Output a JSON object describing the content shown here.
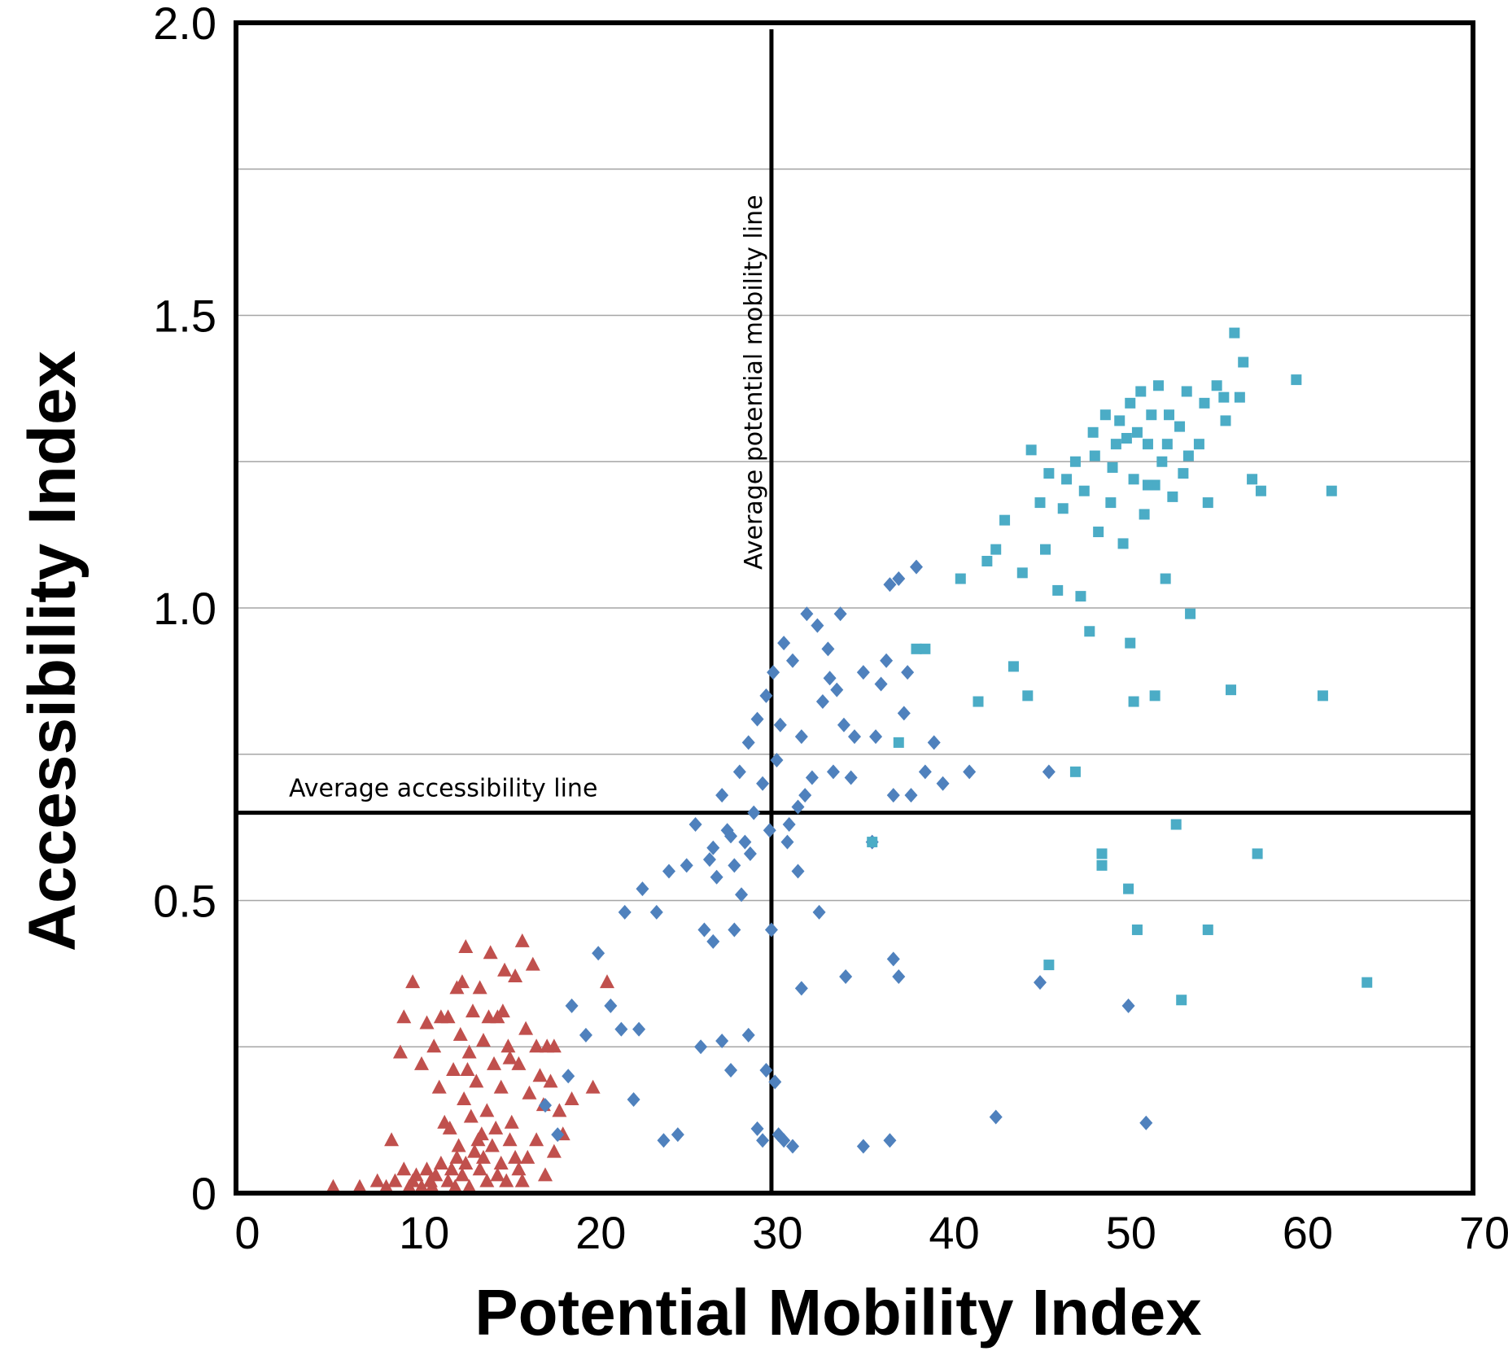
{
  "chart_data": {
    "type": "scatter",
    "title": "",
    "xlabel": "Potential Mobility Index",
    "ylabel": "Accessibility Index",
    "xlim": [
      0,
      70
    ],
    "ylim": [
      0,
      2.0
    ],
    "x_ticks": [
      "0",
      "10",
      "20",
      "30",
      "40",
      "50",
      "60",
      "70"
    ],
    "y_ticks": [
      "0",
      "0.5",
      "1.0",
      "1.5",
      "2.0"
    ],
    "grid": "horizontal",
    "legend": "none",
    "reference_lines": [
      {
        "orientation": "vertical",
        "x": 30.3,
        "label": "Average potential mobility line"
      },
      {
        "orientation": "horizontal",
        "y": 0.65,
        "label": "Average accessibility line"
      }
    ],
    "series": [
      {
        "marker": "triangle",
        "color": "#c0504d",
        "points": [
          [
            5.5,
            0.01
          ],
          [
            7.0,
            0.01
          ],
          [
            8.0,
            0.02
          ],
          [
            8.5,
            0.01
          ],
          [
            9.0,
            0.02
          ],
          [
            9.5,
            0.04
          ],
          [
            10.0,
            0.02
          ],
          [
            10.2,
            0.03
          ],
          [
            10.5,
            0.01
          ],
          [
            10.8,
            0.04
          ],
          [
            11.0,
            0.02
          ],
          [
            11.3,
            0.03
          ],
          [
            11.6,
            0.05
          ],
          [
            12.0,
            0.02
          ],
          [
            12.2,
            0.04
          ],
          [
            12.5,
            0.06
          ],
          [
            12.8,
            0.03
          ],
          [
            13.0,
            0.05
          ],
          [
            13.2,
            0.01
          ],
          [
            13.5,
            0.07
          ],
          [
            13.8,
            0.04
          ],
          [
            14.0,
            0.06
          ],
          [
            14.2,
            0.02
          ],
          [
            14.5,
            0.08
          ],
          [
            14.8,
            0.03
          ],
          [
            15.0,
            0.05
          ],
          [
            15.3,
            0.02
          ],
          [
            15.5,
            0.09
          ],
          [
            16.0,
            0.04
          ],
          [
            16.5,
            0.06
          ],
          [
            17.0,
            0.09
          ],
          [
            17.5,
            0.03
          ],
          [
            18.0,
            0.07
          ],
          [
            16.2,
            0.02
          ],
          [
            15.8,
            0.06
          ],
          [
            13.7,
            0.09
          ],
          [
            12.4,
            0.01
          ],
          [
            11.1,
            0.01
          ],
          [
            9.8,
            0.01
          ],
          [
            8.8,
            0.09
          ],
          [
            9.3,
            0.24
          ],
          [
            9.5,
            0.3
          ],
          [
            10.0,
            0.36
          ],
          [
            10.5,
            0.22
          ],
          [
            10.8,
            0.29
          ],
          [
            11.2,
            0.25
          ],
          [
            11.5,
            0.18
          ],
          [
            11.8,
            0.12
          ],
          [
            12.0,
            0.3
          ],
          [
            12.3,
            0.21
          ],
          [
            12.5,
            0.35
          ],
          [
            12.7,
            0.27
          ],
          [
            12.9,
            0.16
          ],
          [
            13.0,
            0.42
          ],
          [
            13.2,
            0.24
          ],
          [
            13.4,
            0.31
          ],
          [
            13.6,
            0.19
          ],
          [
            13.8,
            0.35
          ],
          [
            14.0,
            0.26
          ],
          [
            14.2,
            0.14
          ],
          [
            14.4,
            0.41
          ],
          [
            14.6,
            0.22
          ],
          [
            14.8,
            0.3
          ],
          [
            15.0,
            0.18
          ],
          [
            15.2,
            0.38
          ],
          [
            15.4,
            0.25
          ],
          [
            15.6,
            0.12
          ],
          [
            15.8,
            0.37
          ],
          [
            16.0,
            0.22
          ],
          [
            16.2,
            0.43
          ],
          [
            16.4,
            0.28
          ],
          [
            16.6,
            0.17
          ],
          [
            16.8,
            0.39
          ],
          [
            17.0,
            0.25
          ],
          [
            17.2,
            0.2
          ],
          [
            17.4,
            0.15
          ],
          [
            17.6,
            0.25
          ],
          [
            17.8,
            0.19
          ],
          [
            18.0,
            0.25
          ],
          [
            18.3,
            0.14
          ],
          [
            18.5,
            0.1
          ],
          [
            19.0,
            0.16
          ],
          [
            20.2,
            0.18
          ],
          [
            21.0,
            0.36
          ],
          [
            12.1,
            0.11
          ],
          [
            12.6,
            0.08
          ],
          [
            13.1,
            0.21
          ],
          [
            13.9,
            0.1
          ],
          [
            14.7,
            0.11
          ],
          [
            15.1,
            0.31
          ],
          [
            12.8,
            0.36
          ],
          [
            11.6,
            0.3
          ],
          [
            14.3,
            0.3
          ],
          [
            15.5,
            0.23
          ],
          [
            13.3,
            0.13
          ]
        ]
      },
      {
        "marker": "diamond",
        "color": "#4f81bd",
        "points": [
          [
            17.5,
            0.15
          ],
          [
            18.2,
            0.1
          ],
          [
            18.8,
            0.2
          ],
          [
            19.0,
            0.32
          ],
          [
            19.8,
            0.27
          ],
          [
            20.5,
            0.41
          ],
          [
            21.2,
            0.32
          ],
          [
            21.8,
            0.28
          ],
          [
            22.0,
            0.48
          ],
          [
            22.5,
            0.16
          ],
          [
            23.0,
            0.52
          ],
          [
            23.8,
            0.48
          ],
          [
            24.5,
            0.55
          ],
          [
            25.0,
            0.1
          ],
          [
            25.5,
            0.56
          ],
          [
            26.0,
            0.63
          ],
          [
            26.3,
            0.25
          ],
          [
            26.8,
            0.57
          ],
          [
            27.0,
            0.59
          ],
          [
            27.2,
            0.54
          ],
          [
            27.5,
            0.68
          ],
          [
            27.8,
            0.62
          ],
          [
            28.0,
            0.61
          ],
          [
            28.2,
            0.56
          ],
          [
            28.5,
            0.72
          ],
          [
            28.8,
            0.6
          ],
          [
            29.0,
            0.77
          ],
          [
            29.3,
            0.65
          ],
          [
            29.5,
            0.81
          ],
          [
            29.8,
            0.7
          ],
          [
            30.0,
            0.85
          ],
          [
            30.2,
            0.62
          ],
          [
            30.4,
            0.89
          ],
          [
            30.6,
            0.74
          ],
          [
            30.8,
            0.8
          ],
          [
            31.0,
            0.94
          ],
          [
            31.2,
            0.6
          ],
          [
            31.5,
            0.91
          ],
          [
            31.8,
            0.66
          ],
          [
            32.0,
            0.78
          ],
          [
            32.3,
            0.99
          ],
          [
            32.6,
            0.71
          ],
          [
            32.9,
            0.97
          ],
          [
            33.2,
            0.84
          ],
          [
            33.5,
            0.93
          ],
          [
            33.8,
            0.72
          ],
          [
            34.0,
            0.86
          ],
          [
            34.4,
            0.8
          ],
          [
            34.8,
            0.71
          ],
          [
            35.0,
            0.78
          ],
          [
            35.5,
            0.89
          ],
          [
            36.0,
            0.6
          ],
          [
            36.5,
            0.87
          ],
          [
            37.0,
            1.04
          ],
          [
            37.2,
            0.68
          ],
          [
            37.5,
            1.05
          ],
          [
            37.8,
            0.82
          ],
          [
            38.0,
            0.89
          ],
          [
            38.2,
            0.68
          ],
          [
            38.5,
            1.07
          ],
          [
            39.0,
            0.72
          ],
          [
            39.5,
            0.77
          ],
          [
            40.0,
            0.7
          ],
          [
            41.5,
            0.72
          ],
          [
            45.5,
            0.36
          ],
          [
            46.0,
            0.72
          ],
          [
            50.5,
            0.32
          ],
          [
            29.0,
            0.27
          ],
          [
            29.5,
            0.11
          ],
          [
            30.0,
            0.21
          ],
          [
            30.3,
            0.45
          ],
          [
            30.5,
            0.19
          ],
          [
            30.7,
            0.1
          ],
          [
            31.0,
            0.09
          ],
          [
            31.5,
            0.08
          ],
          [
            32.0,
            0.35
          ],
          [
            33.0,
            0.48
          ],
          [
            34.5,
            0.37
          ],
          [
            35.5,
            0.08
          ],
          [
            37.0,
            0.09
          ],
          [
            37.2,
            0.4
          ],
          [
            37.5,
            0.37
          ],
          [
            43.0,
            0.13
          ],
          [
            51.5,
            0.12
          ],
          [
            26.5,
            0.45
          ],
          [
            27.0,
            0.43
          ],
          [
            27.5,
            0.26
          ],
          [
            28.0,
            0.21
          ],
          [
            29.8,
            0.09
          ],
          [
            28.2,
            0.45
          ],
          [
            28.6,
            0.51
          ],
          [
            29.1,
            0.58
          ],
          [
            31.3,
            0.63
          ],
          [
            31.8,
            0.55
          ],
          [
            32.2,
            0.68
          ],
          [
            33.6,
            0.88
          ],
          [
            34.2,
            0.99
          ],
          [
            36.2,
            0.78
          ],
          [
            36.8,
            0.91
          ],
          [
            24.2,
            0.09
          ],
          [
            22.8,
            0.28
          ]
        ]
      },
      {
        "marker": "square",
        "color": "#4bacc6",
        "points": [
          [
            36.0,
            0.6
          ],
          [
            37.5,
            0.77
          ],
          [
            38.5,
            0.93
          ],
          [
            39.0,
            0.93
          ],
          [
            41.0,
            1.05
          ],
          [
            42.0,
            0.84
          ],
          [
            42.5,
            1.08
          ],
          [
            43.0,
            1.1
          ],
          [
            43.5,
            1.15
          ],
          [
            44.0,
            0.9
          ],
          [
            44.5,
            1.06
          ],
          [
            44.8,
            0.85
          ],
          [
            45.0,
            1.27
          ],
          [
            45.5,
            1.18
          ],
          [
            46.0,
            1.23
          ],
          [
            46.5,
            1.03
          ],
          [
            47.0,
            1.22
          ],
          [
            47.5,
            1.25
          ],
          [
            48.0,
            1.2
          ],
          [
            48.3,
            0.96
          ],
          [
            48.5,
            1.3
          ],
          [
            48.8,
            1.13
          ],
          [
            49.0,
            0.56
          ],
          [
            49.2,
            1.33
          ],
          [
            49.5,
            1.18
          ],
          [
            49.8,
            1.28
          ],
          [
            50.0,
            1.32
          ],
          [
            50.2,
            1.11
          ],
          [
            50.4,
            1.29
          ],
          [
            50.6,
            1.35
          ],
          [
            50.8,
            1.22
          ],
          [
            51.0,
            1.3
          ],
          [
            51.2,
            1.37
          ],
          [
            51.4,
            1.16
          ],
          [
            51.6,
            1.28
          ],
          [
            51.8,
            1.33
          ],
          [
            52.0,
            1.21
          ],
          [
            52.2,
            1.38
          ],
          [
            52.4,
            1.25
          ],
          [
            52.6,
            1.05
          ],
          [
            52.8,
            1.33
          ],
          [
            53.0,
            1.19
          ],
          [
            53.2,
            0.63
          ],
          [
            53.4,
            1.31
          ],
          [
            53.6,
            1.23
          ],
          [
            53.8,
            1.37
          ],
          [
            54.0,
            0.99
          ],
          [
            54.5,
            1.28
          ],
          [
            55.0,
            1.18
          ],
          [
            55.5,
            1.38
          ],
          [
            56.0,
            1.32
          ],
          [
            56.3,
            0.86
          ],
          [
            56.5,
            1.47
          ],
          [
            57.0,
            1.42
          ],
          [
            57.5,
            1.22
          ],
          [
            58.0,
            1.2
          ],
          [
            60.0,
            1.39
          ],
          [
            61.5,
            0.85
          ],
          [
            62.0,
            1.2
          ],
          [
            64.0,
            0.36
          ],
          [
            49.0,
            0.58
          ],
          [
            50.5,
            0.52
          ],
          [
            51.0,
            0.45
          ],
          [
            53.5,
            0.33
          ],
          [
            55.0,
            0.45
          ],
          [
            46.0,
            0.39
          ],
          [
            47.5,
            0.72
          ],
          [
            50.8,
            0.84
          ],
          [
            52.0,
            0.85
          ],
          [
            57.8,
            0.58
          ],
          [
            45.8,
            1.1
          ],
          [
            47.8,
            1.02
          ],
          [
            50.6,
            0.94
          ],
          [
            46.8,
            1.17
          ],
          [
            48.6,
            1.26
          ],
          [
            49.6,
            1.24
          ],
          [
            51.6,
            1.21
          ],
          [
            52.7,
            1.28
          ],
          [
            53.9,
            1.26
          ],
          [
            54.8,
            1.35
          ],
          [
            55.9,
            1.36
          ],
          [
            56.8,
            1.36
          ]
        ]
      }
    ]
  }
}
